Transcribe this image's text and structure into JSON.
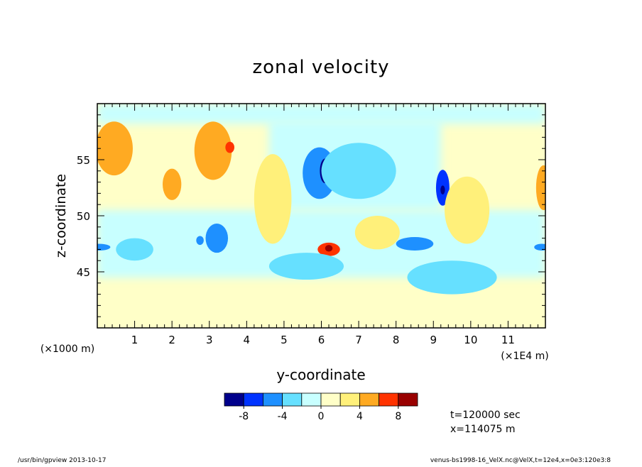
{
  "chart_data": {
    "type": "heatmap",
    "title": "zonal velocity",
    "xlabel": "y-coordinate",
    "ylabel": "z-coordinate",
    "x_scale_note": "(×1E4 m)",
    "y_scale_note": "(×1000 m)",
    "xlim": [
      0,
      12
    ],
    "ylim": [
      40,
      60
    ],
    "xticks": [
      "1",
      "2",
      "3",
      "4",
      "5",
      "6",
      "7",
      "8",
      "9",
      "10",
      "11"
    ],
    "yticks": [
      "45",
      "50",
      "55"
    ],
    "grid": false,
    "colorbar": {
      "colors": [
        "#00008b",
        "#0033ff",
        "#1e90ff",
        "#66e0ff",
        "#c8ffff",
        "#ffffc8",
        "#fff07a",
        "#ffaa22",
        "#ff3300",
        "#990000"
      ],
      "tick_labels": [
        "-8",
        "-4",
        "0",
        "4",
        "8"
      ],
      "tick_values": [
        -8,
        -4,
        0,
        4,
        8
      ],
      "bounds": [
        -10,
        -8,
        -6,
        -4,
        -2,
        0,
        2,
        4,
        6,
        8,
        10
      ]
    },
    "features": [
      {
        "x": 0.45,
        "y": 56.0,
        "value": 4,
        "w": 0.5,
        "h": 2.4
      },
      {
        "x": 3.1,
        "y": 55.8,
        "value": 4,
        "w": 0.5,
        "h": 2.6
      },
      {
        "x": 3.55,
        "y": 56.1,
        "value": 7,
        "w": 0.12,
        "h": 0.5
      },
      {
        "x": 2.0,
        "y": 52.8,
        "value": 5,
        "w": 0.25,
        "h": 1.4
      },
      {
        "x": 5.95,
        "y": 53.8,
        "value": -6,
        "w": 0.45,
        "h": 2.3
      },
      {
        "x": 6.1,
        "y": 54.0,
        "value": -8.5,
        "w": 0.14,
        "h": 1.1
      },
      {
        "x": 3.2,
        "y": 48.0,
        "value": -5,
        "w": 0.3,
        "h": 1.3
      },
      {
        "x": 2.75,
        "y": 47.8,
        "value": -4.5,
        "w": 0.1,
        "h": 0.4
      },
      {
        "x": 6.2,
        "y": 47.0,
        "value": 6.5,
        "w": 0.3,
        "h": 0.6
      },
      {
        "x": 6.2,
        "y": 47.1,
        "value": 8.5,
        "w": 0.1,
        "h": 0.3
      },
      {
        "x": 8.5,
        "y": 47.5,
        "value": -4.5,
        "w": 0.5,
        "h": 0.6
      },
      {
        "x": 9.25,
        "y": 52.5,
        "value": -6.5,
        "w": 0.18,
        "h": 1.6
      },
      {
        "x": 9.25,
        "y": 52.3,
        "value": -9,
        "w": 0.06,
        "h": 0.4
      },
      {
        "x": 0.05,
        "y": 47.2,
        "value": -5,
        "w": 0.3,
        "h": 0.3
      },
      {
        "x": 11.9,
        "y": 47.2,
        "value": -5,
        "w": 0.2,
        "h": 0.3
      },
      {
        "x": 11.95,
        "y": 52.5,
        "value": 5,
        "w": 0.2,
        "h": 2.0
      },
      {
        "x": 7.0,
        "y": 54.0,
        "value": -3,
        "w": 1.0,
        "h": 2.5
      },
      {
        "x": 4.7,
        "y": 51.5,
        "value": 2,
        "w": 0.5,
        "h": 4.0
      },
      {
        "x": 9.9,
        "y": 50.5,
        "value": 3,
        "w": 0.6,
        "h": 3.0
      },
      {
        "x": 7.5,
        "y": 48.5,
        "value": 2,
        "w": 0.6,
        "h": 1.5
      },
      {
        "x": 1.0,
        "y": 47.0,
        "value": -2.5,
        "w": 0.5,
        "h": 1.0
      },
      {
        "x": 5.6,
        "y": 45.5,
        "value": -2.5,
        "w": 1.0,
        "h": 1.2
      },
      {
        "x": 9.5,
        "y": 44.5,
        "value": -2.5,
        "w": 1.2,
        "h": 1.5
      }
    ]
  },
  "info": {
    "time": "t=120000 sec",
    "x_position": "x=114075 m"
  },
  "footer": {
    "left": "/usr/bin/gpview   2013-10-17",
    "right": "venus-bs1998-16_VelX.nc@VelX,t=12e4,x=0e3:120e3:8"
  }
}
